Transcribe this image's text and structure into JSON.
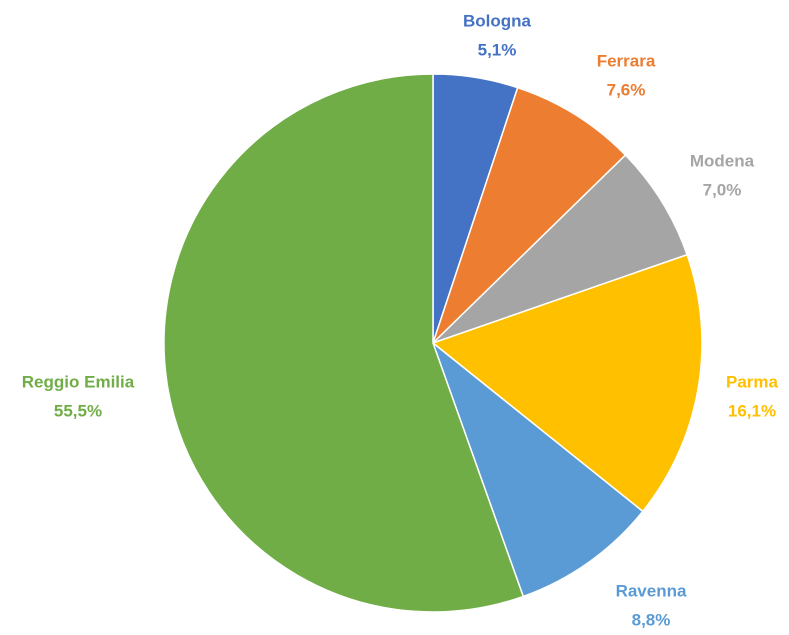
{
  "chart_data": {
    "type": "pie",
    "categories": [
      "Bologna",
      "Ferrara",
      "Modena",
      "Parma",
      "Ravenna",
      "Reggio Emilia"
    ],
    "values": [
      5.1,
      7.6,
      7.0,
      16.1,
      8.8,
      55.5
    ],
    "value_labels": [
      "5,1%",
      "7,6%",
      "7,0%",
      "16,1%",
      "8,8%",
      "55,5%"
    ],
    "colors": [
      "#4472c4",
      "#ed7d31",
      "#a5a5a5",
      "#ffc000",
      "#5b9bd5",
      "#70ad47"
    ]
  }
}
